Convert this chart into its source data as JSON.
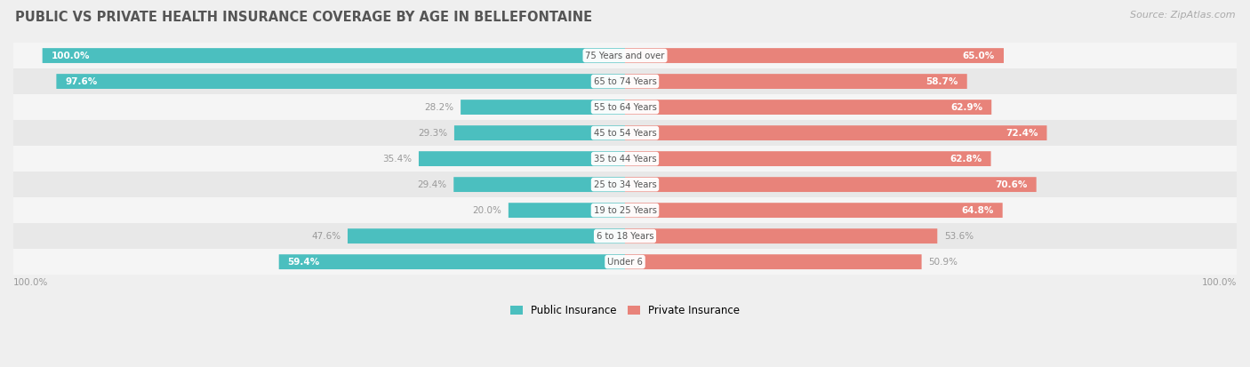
{
  "title": "PUBLIC VS PRIVATE HEALTH INSURANCE COVERAGE BY AGE IN BELLEFONTAINE",
  "source": "Source: ZipAtlas.com",
  "categories": [
    "Under 6",
    "6 to 18 Years",
    "19 to 25 Years",
    "25 to 34 Years",
    "35 to 44 Years",
    "45 to 54 Years",
    "55 to 64 Years",
    "65 to 74 Years",
    "75 Years and over"
  ],
  "public_values": [
    59.4,
    47.6,
    20.0,
    29.4,
    35.4,
    29.3,
    28.2,
    97.6,
    100.0
  ],
  "private_values": [
    50.9,
    53.6,
    64.8,
    70.6,
    62.8,
    72.4,
    62.9,
    58.7,
    65.0
  ],
  "public_color": "#4BBFBF",
  "private_color": "#E8837A",
  "background_color": "#efefef",
  "row_colors": [
    "#f5f5f5",
    "#e8e8e8"
  ],
  "label_color_light": "#ffffff",
  "label_color_dark": "#999999",
  "title_color": "#555555",
  "source_color": "#aaaaaa",
  "legend_public": "Public Insurance",
  "legend_private": "Private Insurance",
  "bar_height": 0.55,
  "figsize": [
    14.06,
    4.13
  ],
  "dpi": 100,
  "xlim": 105
}
